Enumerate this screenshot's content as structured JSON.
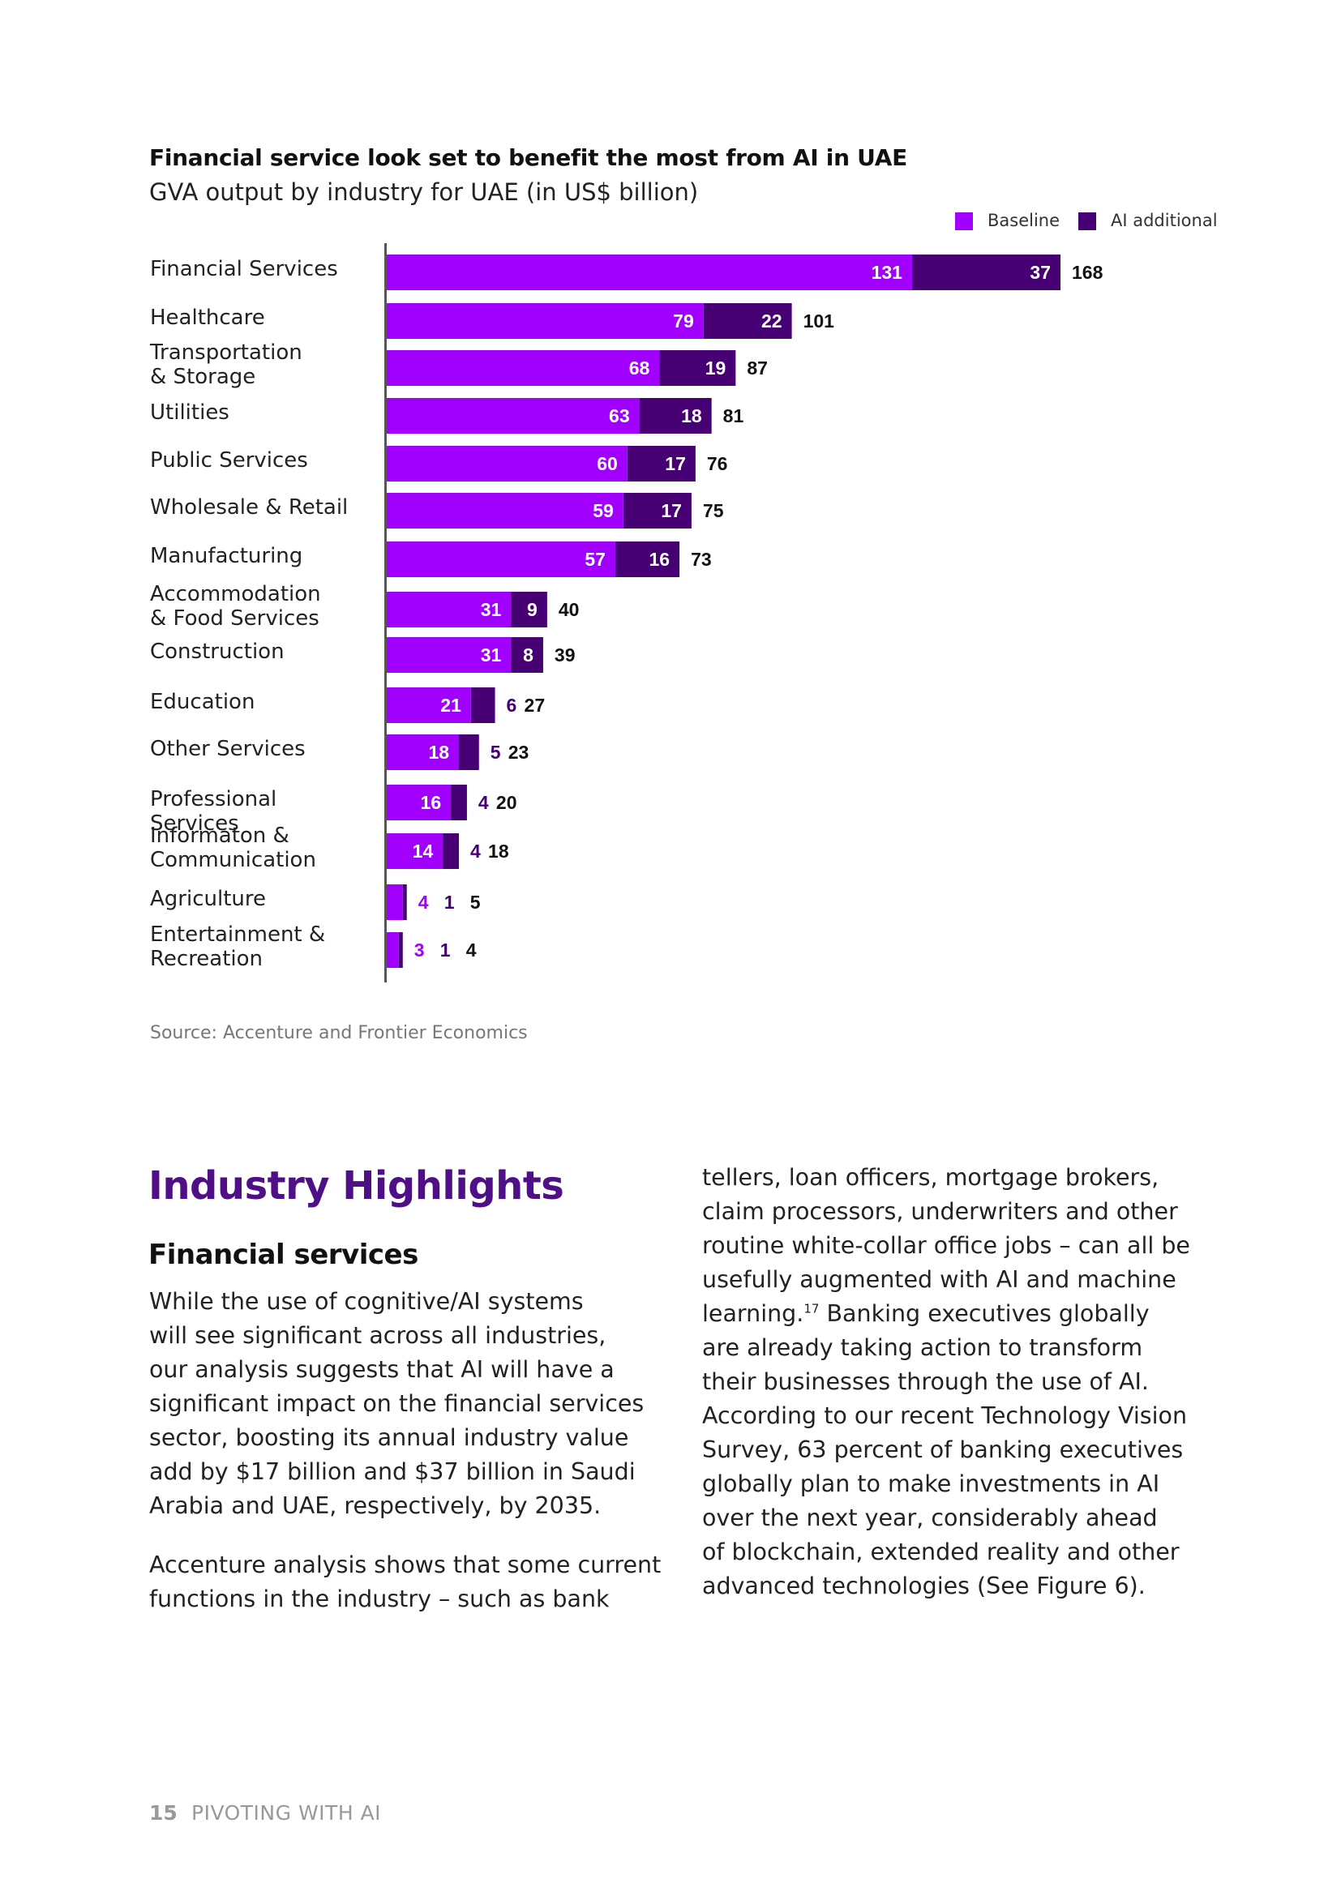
{
  "chart": {
    "title": "Financial service look set to benefit the most from AI in UAE",
    "subtitle": "GVA output by industry for UAE (in US$ billion)",
    "legend": {
      "baseline": "Baseline",
      "ai_additional": "AI additional"
    },
    "source": "Source: Accenture and Frontier Economics"
  },
  "chart_data": {
    "type": "bar",
    "orientation": "horizontal",
    "stacked": true,
    "title": "Financial service look set to benefit the most from AI in UAE",
    "subtitle": "GVA output by industry for UAE (in US$ billion)",
    "categories": [
      [
        "Financial Services"
      ],
      [
        "Healthcare"
      ],
      [
        "Transportation",
        "& Storage"
      ],
      [
        "Utilities"
      ],
      [
        "Public Services"
      ],
      [
        "Wholesale & Retail"
      ],
      [
        "Manufacturing"
      ],
      [
        "Accommodation",
        "& Food Services"
      ],
      [
        "Construction"
      ],
      [
        "Education"
      ],
      [
        "Other Services"
      ],
      [
        "Professional Services"
      ],
      [
        "Informaton &",
        "Communication"
      ],
      [
        "Agriculture"
      ],
      [
        "Entertainment &",
        "Recreation"
      ]
    ],
    "series": [
      {
        "name": "Baseline",
        "values": [
          131,
          79,
          68,
          63,
          60,
          59,
          57,
          31,
          31,
          21,
          18,
          16,
          14,
          4,
          3
        ]
      },
      {
        "name": "AI additional",
        "values": [
          37,
          22,
          19,
          18,
          17,
          17,
          16,
          9,
          8,
          6,
          5,
          4,
          4,
          1,
          1
        ]
      }
    ],
    "totals": [
      168,
      101,
      87,
      81,
      76,
      75,
      73,
      40,
      39,
      27,
      23,
      20,
      18,
      5,
      4
    ],
    "xlim": [
      0,
      168
    ],
    "legend_position": "top-right"
  },
  "colors": {
    "baseline": "#a100ff",
    "ai_additional": "#460073",
    "heading": "#4f0f87"
  },
  "article": {
    "heading": "Industry Highlights",
    "subheading": "Financial services",
    "left_para1": [
      "While the use of cognitive/AI systems",
      "will see significant across all industries,",
      "our analysis suggests that AI will have a",
      "significant impact on the financial services",
      "sector, boosting its annual industry value",
      "add by $17 billion and $37 billion in Saudi",
      "Arabia and UAE, respectively, by 2035."
    ],
    "left_para2": [
      "Accenture analysis shows that some current",
      "functions in the industry – such as bank"
    ],
    "right_para": [
      "tellers, loan officers, mortgage brokers,",
      "claim processors, underwriters and other",
      "routine white-collar office jobs – can all be",
      "usefully augmented with AI and machine",
      "learning.",
      "Banking executives globally",
      "are already taking action to transform",
      "their businesses through the use of AI.",
      "According to our recent Technology Vision",
      "Survey, 63 percent of banking executives",
      "globally plan to make investments in AI",
      "over the next year, considerably ahead",
      "of blockchain, extended reality and other",
      "advanced technologies (See Figure 6)."
    ],
    "footnote_ref": "17"
  },
  "footer": {
    "page_number": "15",
    "doc_title": "PIVOTING WITH AI"
  }
}
